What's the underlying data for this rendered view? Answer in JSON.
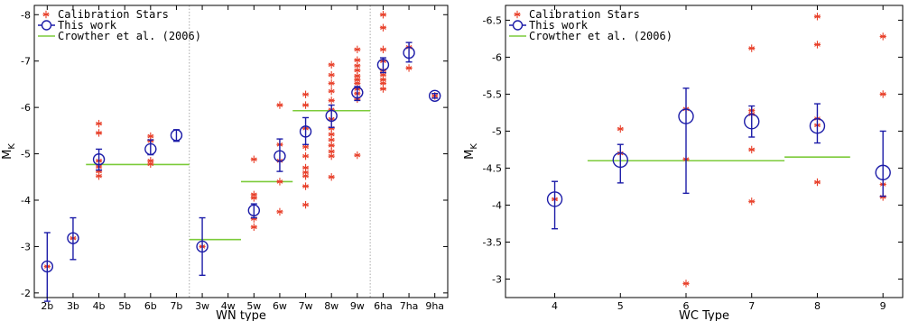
{
  "colors": {
    "calibration": "#e8402a",
    "this_work": "#1c1ca8",
    "crowther": "#7ccb3a",
    "divider": "#aaaaaa"
  },
  "chart_data": [
    {
      "type": "scatter",
      "title": "",
      "xlabel": "WN type",
      "ylabel": "M",
      "ylabel_sub": "K",
      "y_inverted": true,
      "ylim": [
        -1.9,
        -8.2
      ],
      "yticks": [
        -2,
        -3,
        -4,
        -5,
        -6,
        -7,
        -8
      ],
      "categories": [
        "2b",
        "3b",
        "4b",
        "5b",
        "6b",
        "7b",
        "3w",
        "4w",
        "5w",
        "6w",
        "7w",
        "8w",
        "9w",
        "6ha",
        "7ha",
        "9ha"
      ],
      "group_dividers_after": [
        "7b",
        "9w"
      ],
      "legend": {
        "placement": "top-left",
        "entries": [
          "Calibration Stars",
          "This work",
          "Crowther et al. (2006)"
        ]
      },
      "series": [
        {
          "name": "Calibration Stars",
          "marker": "asterisk",
          "points": [
            {
              "x": "2b",
              "y": -2.57
            },
            {
              "x": "3b",
              "y": -3.18
            },
            {
              "x": "4b",
              "y": -5.65
            },
            {
              "x": "4b",
              "y": -5.45
            },
            {
              "x": "4b",
              "y": -4.85
            },
            {
              "x": "4b",
              "y": -4.72
            },
            {
              "x": "4b",
              "y": -4.62
            },
            {
              "x": "4b",
              "y": -4.52
            },
            {
              "x": "6b",
              "y": -5.38
            },
            {
              "x": "6b",
              "y": -5.28
            },
            {
              "x": "6b",
              "y": -4.85
            },
            {
              "x": "6b",
              "y": -4.78
            },
            {
              "x": "3w",
              "y": -3.0
            },
            {
              "x": "5w",
              "y": -4.88
            },
            {
              "x": "5w",
              "y": -4.12
            },
            {
              "x": "5w",
              "y": -4.05
            },
            {
              "x": "5w",
              "y": -3.6
            },
            {
              "x": "5w",
              "y": -3.42
            },
            {
              "x": "6w",
              "y": -6.05
            },
            {
              "x": "6w",
              "y": -5.2
            },
            {
              "x": "6w",
              "y": -4.85
            },
            {
              "x": "6w",
              "y": -4.4
            },
            {
              "x": "6w",
              "y": -3.75
            },
            {
              "x": "7w",
              "y": -6.28
            },
            {
              "x": "7w",
              "y": -6.05
            },
            {
              "x": "7w",
              "y": -5.55
            },
            {
              "x": "7w",
              "y": -5.15
            },
            {
              "x": "7w",
              "y": -4.95
            },
            {
              "x": "7w",
              "y": -4.7
            },
            {
              "x": "7w",
              "y": -4.6
            },
            {
              "x": "7w",
              "y": -4.52
            },
            {
              "x": "7w",
              "y": -4.3
            },
            {
              "x": "7w",
              "y": -3.9
            },
            {
              "x": "8w",
              "y": -6.92
            },
            {
              "x": "8w",
              "y": -6.7
            },
            {
              "x": "8w",
              "y": -6.52
            },
            {
              "x": "8w",
              "y": -6.35
            },
            {
              "x": "8w",
              "y": -6.15
            },
            {
              "x": "8w",
              "y": -5.95
            },
            {
              "x": "8w",
              "y": -5.75
            },
            {
              "x": "8w",
              "y": -5.55
            },
            {
              "x": "8w",
              "y": -5.42
            },
            {
              "x": "8w",
              "y": -5.3
            },
            {
              "x": "8w",
              "y": -5.18
            },
            {
              "x": "8w",
              "y": -5.05
            },
            {
              "x": "8w",
              "y": -4.95
            },
            {
              "x": "8w",
              "y": -4.5
            },
            {
              "x": "9w",
              "y": -7.25
            },
            {
              "x": "9w",
              "y": -7.02
            },
            {
              "x": "9w",
              "y": -6.9
            },
            {
              "x": "9w",
              "y": -6.8
            },
            {
              "x": "9w",
              "y": -6.68
            },
            {
              "x": "9w",
              "y": -6.6
            },
            {
              "x": "9w",
              "y": -6.52
            },
            {
              "x": "9w",
              "y": -6.4
            },
            {
              "x": "9w",
              "y": -6.3
            },
            {
              "x": "9w",
              "y": -6.18
            },
            {
              "x": "9w",
              "y": -4.97
            },
            {
              "x": "6ha",
              "y": -8.0
            },
            {
              "x": "6ha",
              "y": -7.72
            },
            {
              "x": "6ha",
              "y": -7.25
            },
            {
              "x": "6ha",
              "y": -7.0
            },
            {
              "x": "6ha",
              "y": -6.8
            },
            {
              "x": "6ha",
              "y": -6.7
            },
            {
              "x": "6ha",
              "y": -6.6
            },
            {
              "x": "6ha",
              "y": -6.52
            },
            {
              "x": "6ha",
              "y": -6.4
            },
            {
              "x": "7ha",
              "y": -7.3
            },
            {
              "x": "7ha",
              "y": -6.85
            },
            {
              "x": "9ha",
              "y": -6.25
            }
          ]
        },
        {
          "name": "This work",
          "marker": "open-circle-errorbar",
          "points": [
            {
              "x": "2b",
              "y": -2.57,
              "err_low": -1.82,
              "err_high": -3.3
            },
            {
              "x": "3b",
              "y": -3.18,
              "err_low": -2.72,
              "err_high": -3.62
            },
            {
              "x": "4b",
              "y": -4.88,
              "err_low": -4.65,
              "err_high": -5.1
            },
            {
              "x": "6b",
              "y": -5.1,
              "err_low": -4.98,
              "err_high": -5.3
            },
            {
              "x": "7b",
              "y": -5.4,
              "err_low": -5.27,
              "err_high": -5.52
            },
            {
              "x": "3w",
              "y": -3.0,
              "err_low": -2.38,
              "err_high": -3.62
            },
            {
              "x": "5w",
              "y": -3.78,
              "err_low": -3.62,
              "err_high": -3.92
            },
            {
              "x": "6w",
              "y": -4.95,
              "err_low": -4.62,
              "err_high": -5.32
            },
            {
              "x": "7w",
              "y": -5.48,
              "err_low": -5.2,
              "err_high": -5.78
            },
            {
              "x": "8w",
              "y": -5.82,
              "err_low": -5.57,
              "err_high": -6.05
            },
            {
              "x": "9w",
              "y": -6.32,
              "err_low": -6.15,
              "err_high": -6.45
            },
            {
              "x": "6ha",
              "y": -6.92,
              "err_low": -6.75,
              "err_high": -7.07
            },
            {
              "x": "7ha",
              "y": -7.18,
              "err_low": -6.98,
              "err_high": -7.4
            },
            {
              "x": "9ha",
              "y": -6.25,
              "err_low": -6.2,
              "err_high": -6.3
            }
          ]
        },
        {
          "name": "Crowther et al. (2006)",
          "marker": "line",
          "segments": [
            {
              "x_from": "4b",
              "x_to": "7b",
              "x_from_offset": -0.5,
              "x_to_offset": 0.5,
              "y": -4.77
            },
            {
              "x_from": "3w",
              "x_to": "4w",
              "x_from_offset": -0.5,
              "x_to_offset": 0.5,
              "y": -3.15
            },
            {
              "x_from": "5w",
              "x_to": "6w",
              "x_from_offset": -0.5,
              "x_to_offset": 0.5,
              "y": -4.4
            },
            {
              "x_from": "7w",
              "x_to": "9w",
              "x_from_offset": -0.5,
              "x_to_offset": 0.5,
              "y": -5.93
            }
          ]
        }
      ]
    },
    {
      "type": "scatter",
      "title": "",
      "xlabel": "WC Type",
      "ylabel": "M",
      "ylabel_sub": "K",
      "y_inverted": true,
      "ylim": [
        -2.75,
        -6.7
      ],
      "yticks": [
        -3,
        -3.5,
        -4,
        -4.5,
        -5,
        -5.5,
        -6,
        -6.5
      ],
      "ytick_labels": [
        "-3",
        "-3.5",
        "-4",
        "-4.5",
        "-5",
        "-5.5",
        "-6",
        "-6.5"
      ],
      "xlim": [
        3.25,
        9.3
      ],
      "xticks": [
        4,
        5,
        6,
        7,
        8,
        9
      ],
      "legend": {
        "placement": "top-left",
        "entries": [
          "Calibration Stars",
          "This work",
          "Crowther et al. (2006)"
        ]
      },
      "series": [
        {
          "name": "Calibration Stars",
          "marker": "asterisk",
          "points": [
            {
              "x": 4,
              "y": -4.08
            },
            {
              "x": 5,
              "y": -5.03
            },
            {
              "x": 5,
              "y": -4.7
            },
            {
              "x": 6,
              "y": -5.3
            },
            {
              "x": 6,
              "y": -4.62
            },
            {
              "x": 6,
              "y": -2.94
            },
            {
              "x": 7,
              "y": -6.12
            },
            {
              "x": 7,
              "y": -5.28
            },
            {
              "x": 7,
              "y": -5.23
            },
            {
              "x": 7,
              "y": -4.75
            },
            {
              "x": 7,
              "y": -4.05
            },
            {
              "x": 8,
              "y": -6.55
            },
            {
              "x": 8,
              "y": -6.17
            },
            {
              "x": 8,
              "y": -5.17
            },
            {
              "x": 8,
              "y": -5.08
            },
            {
              "x": 8,
              "y": -4.31
            },
            {
              "x": 9,
              "y": -6.28
            },
            {
              "x": 9,
              "y": -5.5
            },
            {
              "x": 9,
              "y": -4.28
            },
            {
              "x": 9,
              "y": -4.11
            }
          ]
        },
        {
          "name": "This work",
          "marker": "open-circle-errorbar",
          "points": [
            {
              "x": 4,
              "y": -4.08,
              "err_low": -3.68,
              "err_high": -4.32
            },
            {
              "x": 5,
              "y": -4.61,
              "err_low": -4.3,
              "err_high": -4.82
            },
            {
              "x": 6,
              "y": -5.2,
              "err_low": -4.16,
              "err_high": -5.58
            },
            {
              "x": 7,
              "y": -5.13,
              "err_low": -4.92,
              "err_high": -5.34
            },
            {
              "x": 8,
              "y": -5.07,
              "err_low": -4.84,
              "err_high": -5.37
            },
            {
              "x": 9,
              "y": -4.44,
              "err_low": -4.12,
              "err_high": -5.0
            }
          ]
        },
        {
          "name": "Crowther et al. (2006)",
          "marker": "line",
          "segments": [
            {
              "x_from": 4.5,
              "x_to": 7.5,
              "y": -4.6
            },
            {
              "x_from": 7.5,
              "x_to": 8.5,
              "y": -4.65
            }
          ]
        }
      ]
    }
  ]
}
